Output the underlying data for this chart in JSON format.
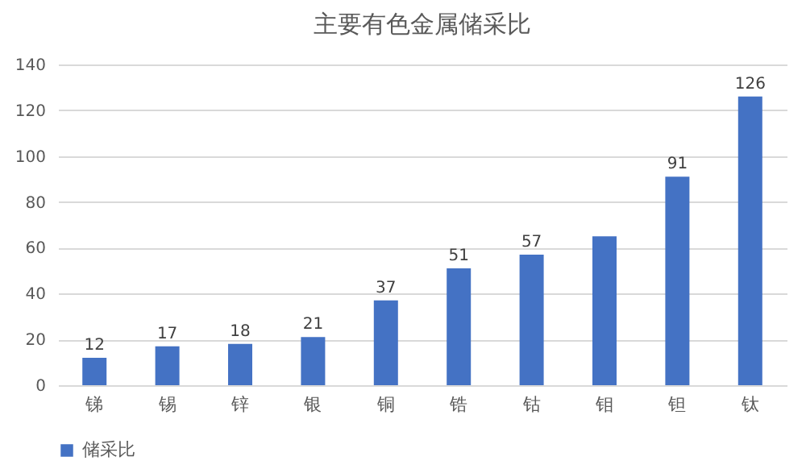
{
  "chart_data": {
    "type": "bar",
    "title": "主要有色金属储采比",
    "categories": [
      "锑",
      "锡",
      "锌",
      "银",
      "铜",
      "锆",
      "钴",
      "钼",
      "钽",
      "钛"
    ],
    "series": [
      {
        "name": "储采比",
        "color": "#4472c4",
        "values": [
          12,
          17,
          18,
          21,
          37,
          51,
          57,
          65,
          91,
          126
        ]
      }
    ],
    "value_labels": [
      "12",
      "17",
      "18",
      "21",
      "37",
      "51",
      "57",
      null,
      "91",
      "126"
    ],
    "ylim": [
      0,
      140
    ],
    "yticks": [
      0,
      20,
      40,
      60,
      80,
      100,
      120,
      140
    ],
    "grid": "y",
    "legend": "bottom"
  }
}
